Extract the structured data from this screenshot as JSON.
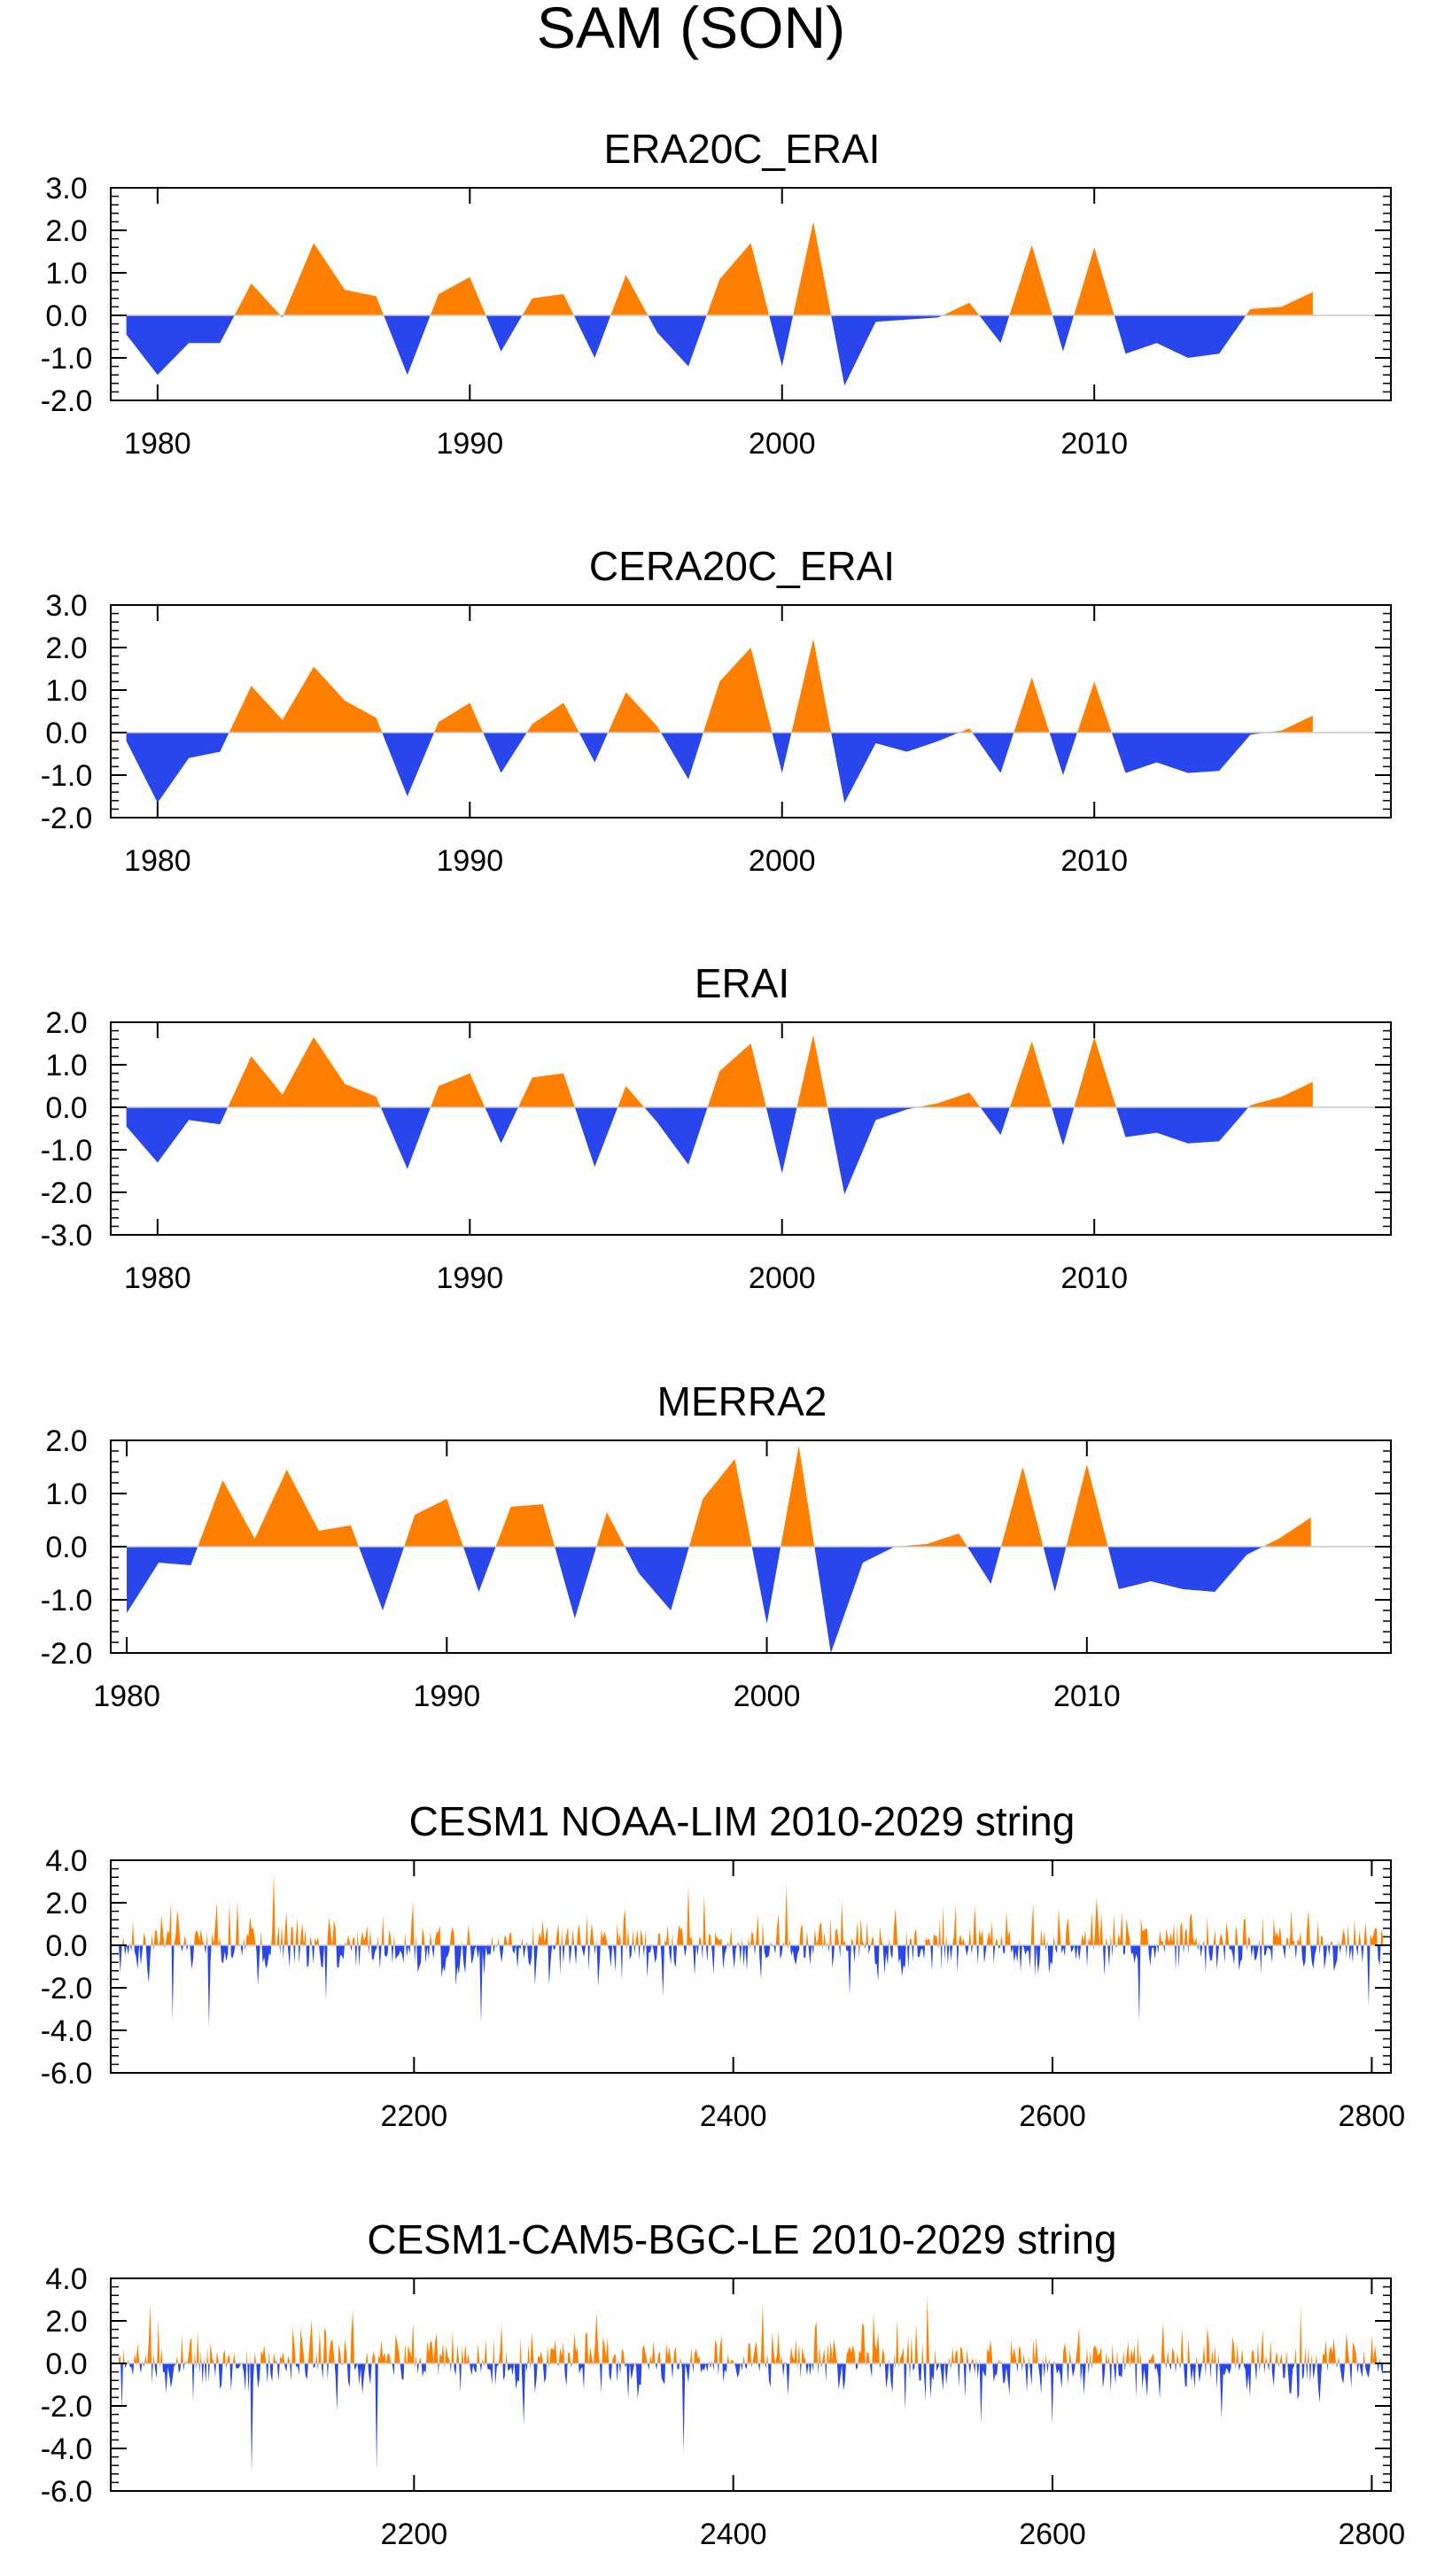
{
  "title": "SAM (SON)",
  "colors": {
    "positive": "#FF8000",
    "negative": "#2846EB",
    "frame": "#000000",
    "zero_line": "#c8c8c8"
  },
  "chart_data": [
    {
      "type": "area",
      "title": "ERA20C_ERAI",
      "x_ticks": [
        1980,
        1990,
        2000,
        2010
      ],
      "y_ticks": [
        "3.0",
        "2.0",
        "1.0",
        "0.0",
        "-1.0",
        "-2.0"
      ],
      "xlim": [
        1978.5,
        2019.5
      ],
      "ylim": [
        -2.0,
        3.0
      ],
      "years": [
        1979,
        1980,
        1981,
        1982,
        1983,
        1984,
        1985,
        1986,
        1987,
        1988,
        1989,
        1990,
        1991,
        1992,
        1993,
        1994,
        1995,
        1996,
        1997,
        1998,
        1999,
        2000,
        2001,
        2002,
        2003,
        2004,
        2005,
        2006,
        2007,
        2008,
        2009,
        2010,
        2011,
        2012,
        2013,
        2014,
        2015,
        2016,
        2017
      ],
      "values": [
        -0.45,
        -1.4,
        -0.65,
        -0.65,
        0.75,
        -0.05,
        1.7,
        0.6,
        0.45,
        -1.4,
        0.5,
        0.9,
        -0.85,
        0.4,
        0.5,
        -1.0,
        0.95,
        -0.4,
        -1.2,
        0.85,
        1.7,
        -1.2,
        2.2,
        -1.65,
        -0.15,
        -0.1,
        -0.05,
        0.3,
        -0.65,
        1.65,
        -0.85,
        1.6,
        -0.9,
        -0.65,
        -1.0,
        -0.9,
        0.15,
        0.2,
        0.55
      ]
    },
    {
      "type": "area",
      "title": "CERA20C_ERAI",
      "x_ticks": [
        1980,
        1990,
        2000,
        2010
      ],
      "y_ticks": [
        "3.0",
        "2.0",
        "1.0",
        "0.0",
        "-1.0",
        "-2.0"
      ],
      "xlim": [
        1978.5,
        2019.5
      ],
      "ylim": [
        -2.0,
        3.0
      ],
      "years": [
        1979,
        1980,
        1981,
        1982,
        1983,
        1984,
        1985,
        1986,
        1987,
        1988,
        1989,
        1990,
        1991,
        1992,
        1993,
        1994,
        1995,
        1996,
        1997,
        1998,
        1999,
        2000,
        2001,
        2002,
        2003,
        2004,
        2005,
        2006,
        2007,
        2008,
        2009,
        2010,
        2011,
        2012,
        2013,
        2014,
        2015,
        2016,
        2017
      ],
      "values": [
        -0.2,
        -1.65,
        -0.6,
        -0.45,
        1.1,
        0.3,
        1.55,
        0.75,
        0.35,
        -1.5,
        0.25,
        0.7,
        -0.95,
        0.2,
        0.7,
        -0.7,
        0.95,
        0.15,
        -1.1,
        1.2,
        2.0,
        -0.95,
        2.2,
        -1.65,
        -0.25,
        -0.45,
        -0.2,
        0.1,
        -0.95,
        1.3,
        -1.0,
        1.2,
        -0.95,
        -0.7,
        -0.95,
        -0.9,
        -0.05,
        0.05,
        0.4
      ]
    },
    {
      "type": "area",
      "title": "ERAI",
      "x_ticks": [
        1980,
        1990,
        2000,
        2010
      ],
      "y_ticks": [
        "2.0",
        "1.0",
        "0.0",
        "-1.0",
        "-2.0",
        "-3.0"
      ],
      "xlim": [
        1978.5,
        2019.5
      ],
      "ylim": [
        -3.0,
        2.0
      ],
      "years": [
        1979,
        1980,
        1981,
        1982,
        1983,
        1984,
        1985,
        1986,
        1987,
        1988,
        1989,
        1990,
        1991,
        1992,
        1993,
        1994,
        1995,
        1996,
        1997,
        1998,
        1999,
        2000,
        2001,
        2002,
        2003,
        2004,
        2005,
        2006,
        2007,
        2008,
        2009,
        2010,
        2011,
        2012,
        2013,
        2014,
        2015,
        2016,
        2017
      ],
      "values": [
        -0.45,
        -1.3,
        -0.3,
        -0.4,
        1.2,
        0.3,
        1.65,
        0.55,
        0.25,
        -1.45,
        0.5,
        0.8,
        -0.85,
        0.7,
        0.8,
        -1.4,
        0.5,
        -0.35,
        -1.35,
        0.85,
        1.5,
        -1.55,
        1.7,
        -2.05,
        -0.3,
        -0.05,
        0.1,
        0.35,
        -0.65,
        1.55,
        -0.9,
        1.65,
        -0.7,
        -0.6,
        -0.85,
        -0.8,
        0.05,
        0.25,
        0.6
      ]
    },
    {
      "type": "area",
      "title": "MERRA2",
      "x_ticks": [
        1980,
        1990,
        2000,
        2010
      ],
      "y_ticks": [
        "2.0",
        "1.0",
        "0.0",
        "-1.0",
        "-2.0"
      ],
      "xlim": [
        1979.5,
        2019.5
      ],
      "ylim": [
        -2.0,
        2.0
      ],
      "years": [
        1980,
        1981,
        1982,
        1983,
        1984,
        1985,
        1986,
        1987,
        1988,
        1989,
        1990,
        1991,
        1992,
        1993,
        1994,
        1995,
        1996,
        1997,
        1998,
        1999,
        2000,
        2001,
        2002,
        2003,
        2004,
        2005,
        2006,
        2007,
        2008,
        2009,
        2010,
        2011,
        2012,
        2013,
        2014,
        2015,
        2016,
        2017
      ],
      "values": [
        -1.25,
        -0.3,
        -0.35,
        1.25,
        0.15,
        1.45,
        0.3,
        0.4,
        -1.2,
        0.6,
        0.9,
        -0.85,
        0.75,
        0.8,
        -1.35,
        0.65,
        -0.5,
        -1.2,
        0.9,
        1.65,
        -1.45,
        1.9,
        -2.0,
        -0.3,
        0.0,
        0.05,
        0.25,
        -0.7,
        1.5,
        -0.85,
        1.55,
        -0.8,
        -0.65,
        -0.8,
        -0.85,
        -0.15,
        0.15,
        0.55
      ]
    },
    {
      "type": "area",
      "title": "CESM1 NOAA-LIM 2010-2029 string",
      "x_ticks": [
        2200,
        2400,
        2600,
        2800
      ],
      "y_ticks": [
        "4.0",
        "2.0",
        "0.0",
        "-2.0",
        "-4.0",
        "-6.0"
      ],
      "xlim": [
        2010,
        2812
      ],
      "ylim": [
        -6.0,
        4.0
      ],
      "n_points": 800,
      "seed": 1234,
      "noise_scale": 0.75,
      "extremes": [
        [
          2242,
          -3.7
        ],
        [
          2654,
          -3.6
        ],
        [
          2798,
          -2.9
        ],
        [
          2588,
          2.0
        ],
        [
          2076,
          2.0
        ],
        [
          2145,
          -2.6
        ],
        [
          2356,
          -2.4
        ]
      ]
    },
    {
      "type": "area",
      "title": "CESM1-CAM5-BGC-LE 2010-2029 string",
      "x_ticks": [
        2200,
        2400,
        2600,
        2800
      ],
      "y_ticks": [
        "4.0",
        "2.0",
        "0.0",
        "-2.0",
        "-4.0",
        "-6.0"
      ],
      "xlim": [
        2010,
        2812
      ],
      "ylim": [
        -6.0,
        4.0
      ],
      "n_points": 800,
      "seed": 4321,
      "noise_scale": 0.75,
      "extremes": [
        [
          2098,
          -5.2
        ],
        [
          2177,
          -5.1
        ],
        [
          2369,
          -4.2
        ],
        [
          2600,
          -2.9
        ],
        [
          2488,
          2.4
        ],
        [
          2136,
          2.1
        ],
        [
          2706,
          -2.6
        ],
        [
          2017,
          -2.2
        ]
      ]
    }
  ]
}
